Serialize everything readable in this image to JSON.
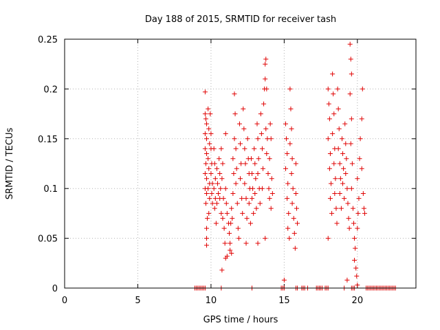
{
  "chart_data": {
    "type": "scatter",
    "title": "Day 188 of 2015, SRMTID for receiver tash",
    "xlabel": "GPS time / hours",
    "ylabel": "SRMTID / TECUs",
    "xlim": [
      0,
      24
    ],
    "ylim": [
      0,
      0.25
    ],
    "xticks": [
      0,
      5,
      10,
      15,
      20
    ],
    "yticks": [
      0,
      0.05,
      0.1,
      0.15,
      0.2,
      0.25
    ],
    "xtick_labels": [
      "0",
      "5",
      "10",
      "15",
      "20"
    ],
    "ytick_labels": [
      "0",
      "0.05",
      "0.1",
      "0.15",
      "0.2",
      "0.25"
    ],
    "grid": true,
    "marker": "+",
    "color": "#e00000",
    "series": [
      {
        "name": "SRMTID",
        "points": [
          [
            8.9,
            0
          ],
          [
            9.0,
            0
          ],
          [
            9.1,
            0
          ],
          [
            9.2,
            0
          ],
          [
            9.3,
            0
          ],
          [
            9.4,
            0
          ],
          [
            9.5,
            0
          ],
          [
            9.6,
            0
          ],
          [
            10.7,
            0
          ],
          [
            12.8,
            0
          ],
          [
            14.8,
            0
          ],
          [
            14.9,
            0
          ],
          [
            15.0,
            0
          ],
          [
            15.8,
            0
          ],
          [
            15.9,
            0
          ],
          [
            16.2,
            0
          ],
          [
            16.3,
            0
          ],
          [
            16.4,
            0
          ],
          [
            16.6,
            0
          ],
          [
            17.2,
            0
          ],
          [
            17.3,
            0
          ],
          [
            17.4,
            0
          ],
          [
            17.5,
            0
          ],
          [
            17.6,
            0
          ],
          [
            17.8,
            0
          ],
          [
            17.9,
            0
          ],
          [
            18.0,
            0
          ],
          [
            19.1,
            0
          ],
          [
            19.6,
            0
          ],
          [
            19.7,
            0
          ],
          [
            19.8,
            0
          ],
          [
            20.6,
            0
          ],
          [
            20.7,
            0
          ],
          [
            20.8,
            0
          ],
          [
            20.9,
            0
          ],
          [
            21.0,
            0
          ],
          [
            21.1,
            0
          ],
          [
            21.2,
            0
          ],
          [
            21.3,
            0
          ],
          [
            21.4,
            0
          ],
          [
            21.5,
            0
          ],
          [
            21.6,
            0
          ],
          [
            21.7,
            0
          ],
          [
            21.8,
            0
          ],
          [
            21.9,
            0
          ],
          [
            22.0,
            0
          ],
          [
            22.1,
            0
          ],
          [
            22.2,
            0
          ],
          [
            22.3,
            0
          ],
          [
            22.4,
            0
          ],
          [
            22.5,
            0
          ],
          [
            22.6,
            0
          ],
          [
            9.6,
            0.197
          ],
          [
            9.6,
            0.175
          ],
          [
            9.65,
            0.17
          ],
          [
            9.7,
            0.165
          ],
          [
            9.6,
            0.155
          ],
          [
            9.7,
            0.15
          ],
          [
            9.6,
            0.14
          ],
          [
            9.7,
            0.135
          ],
          [
            9.65,
            0.125
          ],
          [
            9.6,
            0.115
          ],
          [
            9.7,
            0.11
          ],
          [
            9.6,
            0.1
          ],
          [
            9.7,
            0.095
          ],
          [
            9.65,
            0.085
          ],
          [
            9.75,
            0.07
          ],
          [
            9.7,
            0.06
          ],
          [
            9.7,
            0.05
          ],
          [
            9.7,
            0.043
          ],
          [
            9.8,
            0.18
          ],
          [
            9.85,
            0.16
          ],
          [
            9.9,
            0.145
          ],
          [
            9.8,
            0.13
          ],
          [
            9.85,
            0.12
          ],
          [
            9.9,
            0.105
          ],
          [
            9.8,
            0.1
          ],
          [
            9.9,
            0.09
          ],
          [
            9.85,
            0.075
          ],
          [
            9.95,
            0.175
          ],
          [
            10.0,
            0.155
          ],
          [
            10.0,
            0.14
          ],
          [
            10.05,
            0.125
          ],
          [
            10.0,
            0.115
          ],
          [
            10.1,
            0.105
          ],
          [
            10.05,
            0.095
          ],
          [
            10.1,
            0.085
          ],
          [
            10.2,
            0.14
          ],
          [
            10.25,
            0.125
          ],
          [
            10.3,
            0.11
          ],
          [
            10.2,
            0.1
          ],
          [
            10.3,
            0.09
          ],
          [
            10.25,
            0.08
          ],
          [
            10.35,
            0.065
          ],
          [
            10.4,
            0.12
          ],
          [
            10.45,
            0.105
          ],
          [
            10.5,
            0.095
          ],
          [
            10.4,
            0.085
          ],
          [
            10.55,
            0.13
          ],
          [
            10.6,
            0.115
          ],
          [
            10.65,
            0.1
          ],
          [
            10.6,
            0.09
          ],
          [
            10.7,
            0.075
          ],
          [
            10.7,
            0.14
          ],
          [
            10.8,
            0.125
          ],
          [
            10.75,
            0.11
          ],
          [
            10.85,
            0.09
          ],
          [
            10.8,
            0.07
          ],
          [
            10.9,
            0.06
          ],
          [
            10.95,
            0.045
          ],
          [
            10.75,
            0.018
          ],
          [
            11.0,
            0.155
          ],
          [
            11.0,
            0.1
          ],
          [
            11.05,
            0.085
          ],
          [
            11.1,
            0.075
          ],
          [
            11.0,
            0.03
          ],
          [
            11.1,
            0.032
          ],
          [
            11.2,
            0.065
          ],
          [
            11.25,
            0.055
          ],
          [
            11.3,
            0.045
          ],
          [
            11.3,
            0.038
          ],
          [
            11.4,
            0.035
          ],
          [
            11.35,
            0.065
          ],
          [
            11.45,
            0.07
          ],
          [
            11.4,
            0.08
          ],
          [
            11.5,
            0.095
          ],
          [
            11.55,
            0.115
          ],
          [
            11.5,
            0.13
          ],
          [
            11.6,
            0.15
          ],
          [
            11.65,
            0.175
          ],
          [
            11.6,
            0.195
          ],
          [
            11.7,
            0.14
          ],
          [
            11.75,
            0.12
          ],
          [
            11.7,
            0.105
          ],
          [
            11.8,
            0.085
          ],
          [
            11.85,
            0.06
          ],
          [
            11.9,
            0.05
          ],
          [
            11.95,
            0.165
          ],
          [
            12.0,
            0.145
          ],
          [
            12.05,
            0.125
          ],
          [
            12.0,
            0.11
          ],
          [
            12.1,
            0.09
          ],
          [
            12.15,
            0.075
          ],
          [
            12.2,
            0.18
          ],
          [
            12.25,
            0.16
          ],
          [
            12.3,
            0.14
          ],
          [
            12.35,
            0.125
          ],
          [
            12.3,
            0.105
          ],
          [
            12.4,
            0.09
          ],
          [
            12.45,
            0.07
          ],
          [
            12.4,
            0.045
          ],
          [
            12.5,
            0.15
          ],
          [
            12.55,
            0.13
          ],
          [
            12.6,
            0.115
          ],
          [
            12.65,
            0.1
          ],
          [
            12.6,
            0.085
          ],
          [
            12.7,
            0.065
          ],
          [
            12.75,
            0.13
          ],
          [
            12.8,
            0.115
          ],
          [
            12.85,
            0.1
          ],
          [
            12.8,
            0.09
          ],
          [
            12.9,
            0.075
          ],
          [
            12.95,
            0.14
          ],
          [
            13.0,
            0.125
          ],
          [
            13.05,
            0.11
          ],
          [
            13.0,
            0.095
          ],
          [
            13.1,
            0.08
          ],
          [
            13.15,
            0.165
          ],
          [
            13.2,
            0.15
          ],
          [
            13.25,
            0.13
          ],
          [
            13.2,
            0.115
          ],
          [
            13.3,
            0.1
          ],
          [
            13.35,
            0.085
          ],
          [
            13.4,
            0.175
          ],
          [
            13.45,
            0.155
          ],
          [
            13.5,
            0.14
          ],
          [
            13.55,
            0.12
          ],
          [
            13.5,
            0.1
          ],
          [
            13.6,
            0.185
          ],
          [
            13.65,
            0.2
          ],
          [
            13.7,
            0.21
          ],
          [
            13.75,
            0.23
          ],
          [
            13.7,
            0.225
          ],
          [
            13.8,
            0.2
          ],
          [
            13.75,
            0.16
          ],
          [
            13.85,
            0.15
          ],
          [
            13.8,
            0.135
          ],
          [
            13.9,
            0.115
          ],
          [
            13.95,
            0.1
          ],
          [
            14.0,
            0.09
          ],
          [
            14.05,
            0.165
          ],
          [
            14.1,
            0.15
          ],
          [
            14.0,
            0.13
          ],
          [
            14.15,
            0.11
          ],
          [
            14.2,
            0.095
          ],
          [
            14.1,
            0.08
          ],
          [
            13.7,
            0.05
          ],
          [
            13.2,
            0.045
          ],
          [
            15.1,
            0.165
          ],
          [
            15.15,
            0.15
          ],
          [
            15.2,
            0.135
          ],
          [
            15.1,
            0.12
          ],
          [
            15.25,
            0.105
          ],
          [
            15.2,
            0.09
          ],
          [
            15.3,
            0.075
          ],
          [
            15.25,
            0.06
          ],
          [
            15.35,
            0.05
          ],
          [
            15.4,
            0.2
          ],
          [
            15.45,
            0.18
          ],
          [
            15.5,
            0.16
          ],
          [
            15.4,
            0.145
          ],
          [
            15.55,
            0.13
          ],
          [
            15.5,
            0.115
          ],
          [
            15.6,
            0.1
          ],
          [
            15.55,
            0.085
          ],
          [
            15.65,
            0.07
          ],
          [
            15.7,
            0.055
          ],
          [
            15.75,
            0.04
          ],
          [
            15.8,
            0.095
          ],
          [
            15.85,
            0.08
          ],
          [
            15.9,
            0.065
          ],
          [
            15.8,
            0.125
          ],
          [
            15.0,
            0.008
          ],
          [
            18.0,
            0.2
          ],
          [
            18.05,
            0.185
          ],
          [
            18.1,
            0.17
          ],
          [
            18.0,
            0.15
          ],
          [
            18.15,
            0.135
          ],
          [
            18.1,
            0.12
          ],
          [
            18.2,
            0.105
          ],
          [
            18.15,
            0.09
          ],
          [
            18.25,
            0.075
          ],
          [
            18.0,
            0.05
          ],
          [
            18.3,
            0.215
          ],
          [
            18.35,
            0.195
          ],
          [
            18.4,
            0.175
          ],
          [
            18.3,
            0.155
          ],
          [
            18.45,
            0.14
          ],
          [
            18.4,
            0.125
          ],
          [
            18.5,
            0.11
          ],
          [
            18.45,
            0.095
          ],
          [
            18.55,
            0.08
          ],
          [
            18.6,
            0.065
          ],
          [
            18.65,
            0.2
          ],
          [
            18.7,
            0.18
          ],
          [
            18.75,
            0.16
          ],
          [
            18.7,
            0.14
          ],
          [
            18.8,
            0.125
          ],
          [
            18.85,
            0.11
          ],
          [
            18.8,
            0.095
          ],
          [
            18.9,
            0.08
          ],
          [
            18.95,
            0.15
          ],
          [
            19.0,
            0.135
          ],
          [
            19.05,
            0.12
          ],
          [
            19.0,
            0.105
          ],
          [
            19.1,
            0.09
          ],
          [
            19.15,
            0.165
          ],
          [
            19.2,
            0.145
          ],
          [
            19.25,
            0.13
          ],
          [
            19.2,
            0.115
          ],
          [
            19.3,
            0.1
          ],
          [
            19.35,
            0.085
          ],
          [
            19.4,
            0.07
          ],
          [
            19.45,
            0.06
          ],
          [
            19.5,
            0.245
          ],
          [
            19.55,
            0.23
          ],
          [
            19.6,
            0.215
          ],
          [
            19.5,
            0.195
          ],
          [
            19.6,
            0.17
          ],
          [
            19.55,
            0.145
          ],
          [
            19.65,
            0.125
          ],
          [
            19.6,
            0.1
          ],
          [
            19.7,
            0.08
          ],
          [
            19.75,
            0.065
          ],
          [
            19.8,
            0.05
          ],
          [
            19.85,
            0.04
          ],
          [
            19.8,
            0.028
          ],
          [
            19.9,
            0.02
          ],
          [
            19.95,
            0.012
          ],
          [
            20.0,
            0.06
          ],
          [
            20.05,
            0.075
          ],
          [
            20.1,
            0.09
          ],
          [
            20.0,
            0.11
          ],
          [
            20.15,
            0.13
          ],
          [
            20.2,
            0.15
          ],
          [
            20.3,
            0.17
          ],
          [
            20.35,
            0.2
          ],
          [
            20.3,
            0.12
          ],
          [
            20.4,
            0.095
          ],
          [
            20.45,
            0.08
          ],
          [
            20.5,
            0.075
          ],
          [
            19.3,
            0.008
          ],
          [
            20.0,
            0.003
          ]
        ]
      }
    ]
  }
}
